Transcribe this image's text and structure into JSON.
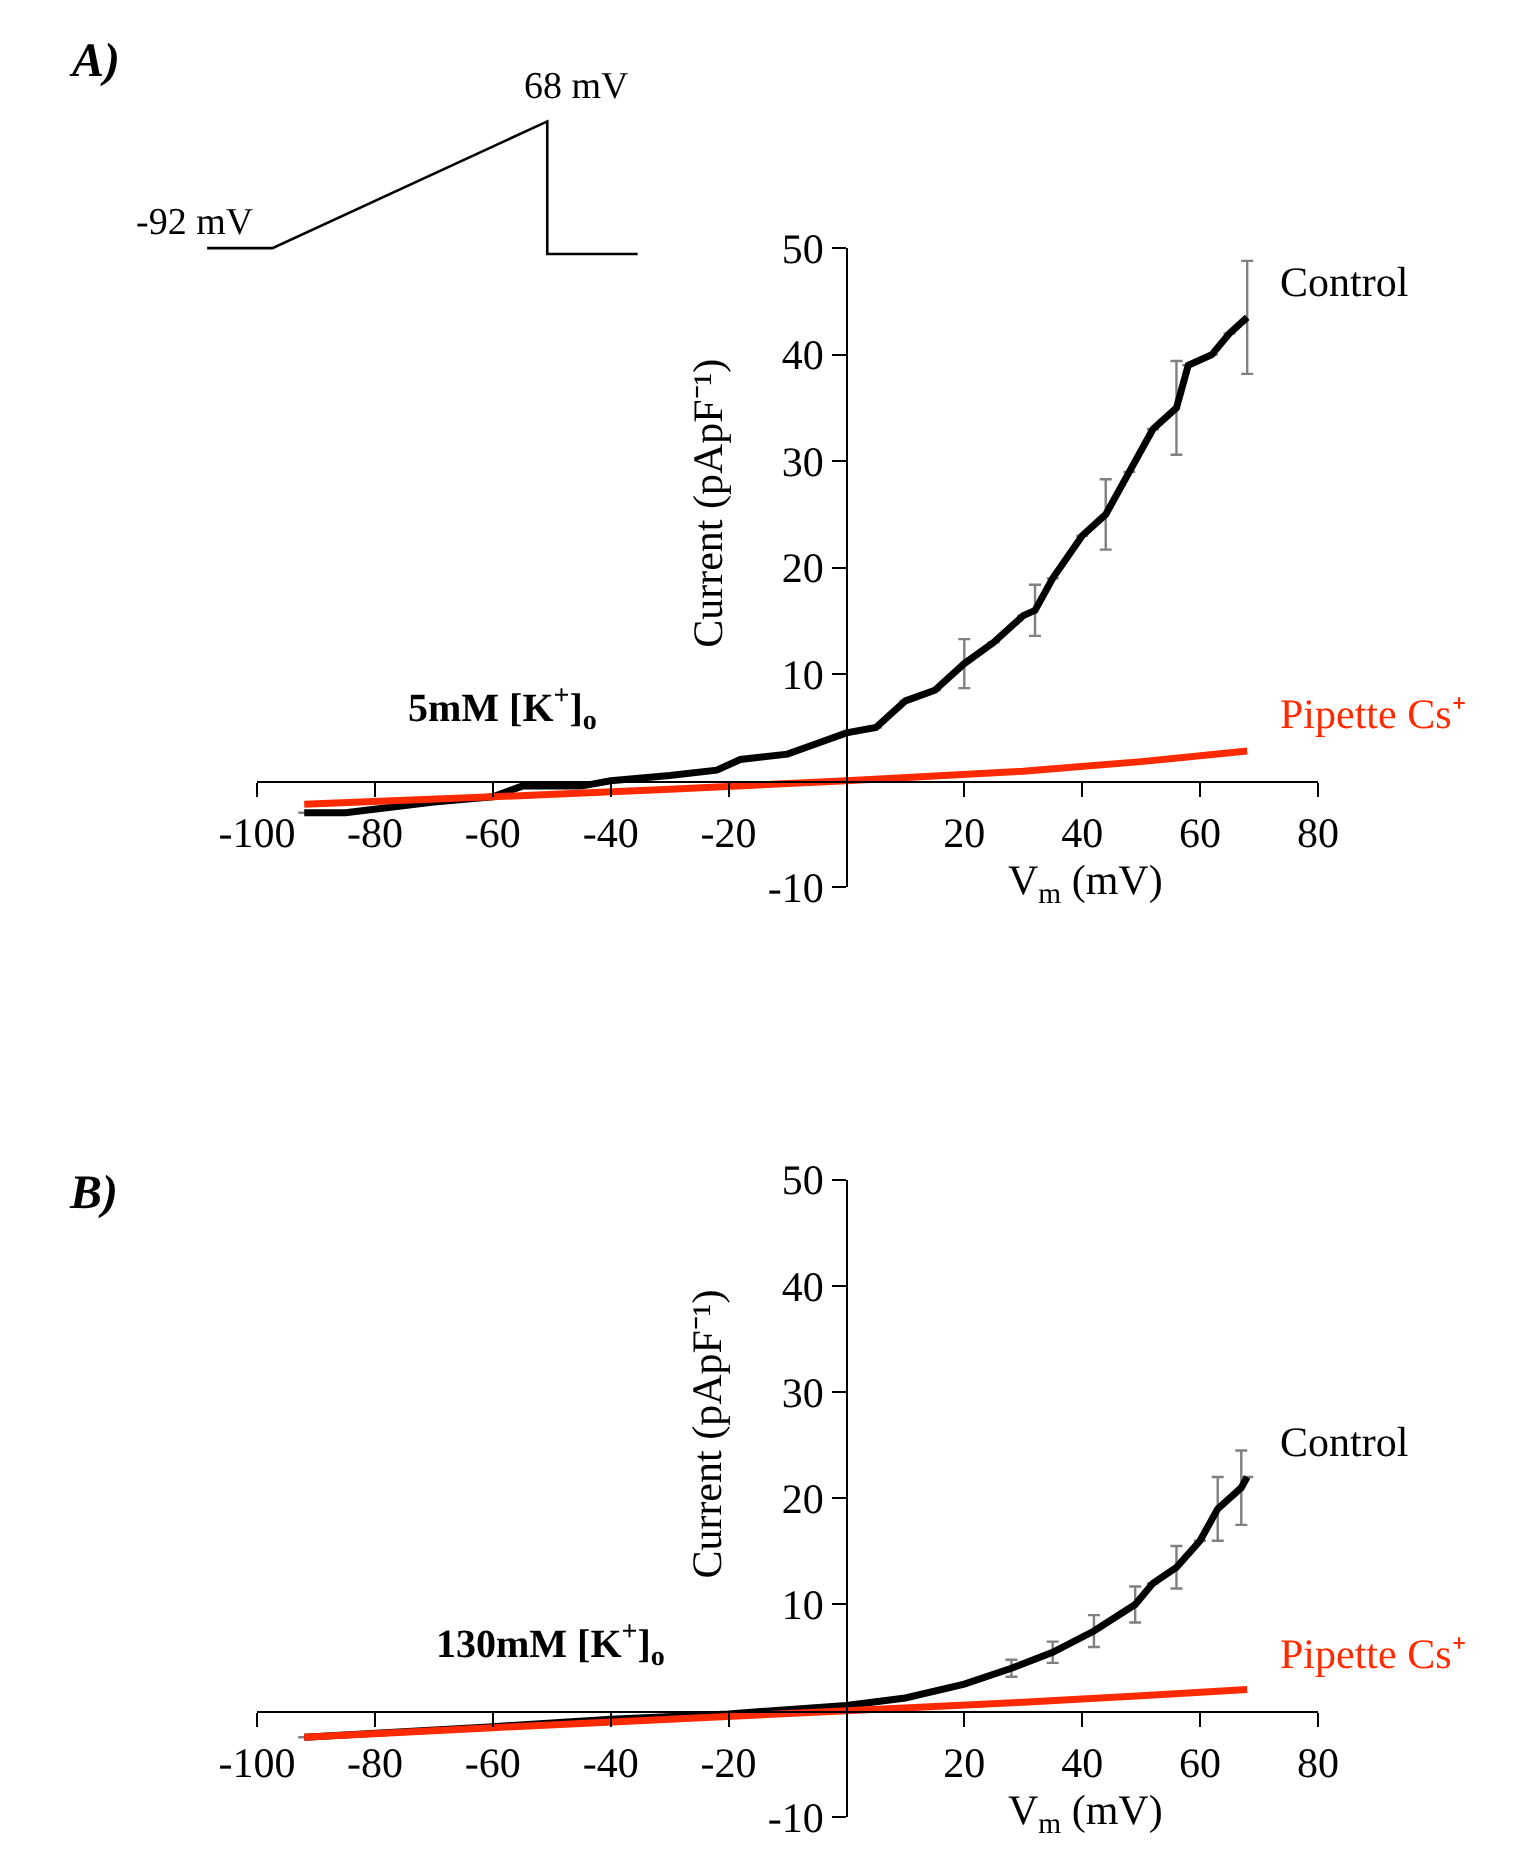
{
  "chart_data": [
    {
      "type": "line",
      "title": "A)",
      "xlabel": "V$_{m}$ (mV)",
      "ylabel": "Current (pApF⁻¹)",
      "annotations": [
        "5mM [K$^{+}$]$_{o}$",
        "-92 mV",
        "68 mV"
      ],
      "xlim": [
        -100,
        80
      ],
      "ylim": [
        -10,
        50
      ],
      "xticks": [
        -100,
        -80,
        -60,
        -40,
        -20,
        20,
        40,
        60,
        80
      ],
      "yticks": [
        -10,
        10,
        20,
        30,
        40,
        50
      ],
      "marker": "none",
      "line_style": "solid",
      "series": [
        {
          "name": "Control",
          "color": "#000000",
          "x": [
            -92,
            -85,
            -70,
            -60,
            -55,
            -45,
            -40,
            -30,
            -22,
            -18,
            -10,
            -5,
            0,
            5,
            10,
            15,
            20,
            25,
            30,
            32,
            35,
            40,
            44,
            48,
            52,
            56,
            58,
            62,
            65,
            68
          ],
          "values": [
            -3,
            -3,
            -2,
            -1.5,
            -0.5,
            -0.5,
            0,
            0.5,
            1,
            2,
            2.5,
            3.5,
            4.5,
            5,
            7.5,
            8.5,
            11,
            13,
            15.5,
            16,
            19,
            23,
            25,
            29,
            33,
            35,
            39,
            40,
            42,
            43.5
          ],
          "errors": [
            null,
            null,
            null,
            null,
            null,
            null,
            null,
            null,
            null,
            null,
            null,
            null,
            null,
            null,
            null,
            null,
            2.3,
            null,
            null,
            2.4,
            null,
            null,
            3.3,
            null,
            null,
            4.4,
            null,
            null,
            null,
            5.3
          ]
        },
        {
          "name": "Pipette Cs⁺",
          "color": "#ff2a00",
          "x": [
            -92,
            -60,
            -30,
            0,
            30,
            50,
            68
          ],
          "values": [
            -2.2,
            -1.5,
            -0.8,
            0,
            0.9,
            1.8,
            2.8
          ]
        }
      ]
    },
    {
      "type": "line",
      "title": "B)",
      "xlabel": "V$_{m}$ (mV)",
      "ylabel": "Current (pApF⁻¹)",
      "annotations": [
        "130mM [K$^{+}$]$_{o}$"
      ],
      "xlim": [
        -100,
        80
      ],
      "ylim": [
        -10,
        50
      ],
      "xticks": [
        -100,
        -80,
        -60,
        -40,
        -20,
        20,
        40,
        60,
        80
      ],
      "yticks": [
        -10,
        10,
        20,
        30,
        40,
        50
      ],
      "marker": "none",
      "line_style": "solid",
      "series": [
        {
          "name": "Control",
          "color": "#000000",
          "x": [
            -92,
            -60,
            -40,
            -20,
            0,
            10,
            20,
            28,
            35,
            42,
            49,
            52,
            56,
            60,
            63,
            67,
            68
          ],
          "values": [
            -2.5,
            -1.5,
            -0.8,
            -0.3,
            0.5,
            1.2,
            2.5,
            4,
            5.5,
            7.5,
            10,
            12,
            13.5,
            16,
            19,
            21,
            22
          ],
          "errors": [
            null,
            null,
            null,
            null,
            null,
            null,
            null,
            0.8,
            1,
            1.5,
            1.7,
            null,
            2,
            null,
            3,
            3.5,
            null
          ]
        },
        {
          "name": "Pipette Cs⁺",
          "color": "#ff2a00",
          "x": [
            -92,
            -60,
            -30,
            0,
            30,
            50,
            68
          ],
          "values": [
            -2.5,
            -1.6,
            -0.8,
            0,
            0.8,
            1.4,
            2
          ]
        }
      ]
    }
  ]
}
